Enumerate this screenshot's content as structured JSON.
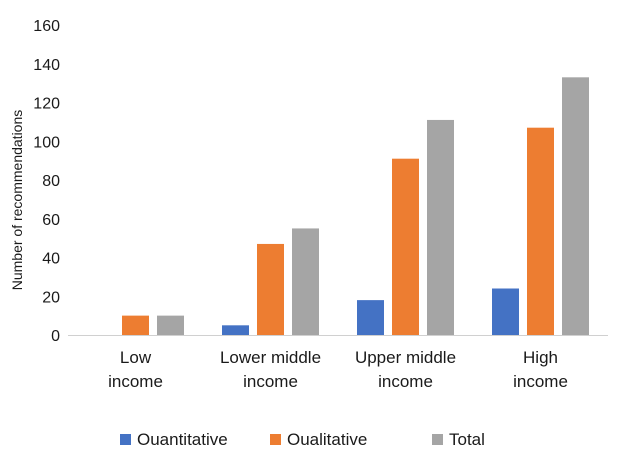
{
  "chart_data": {
    "type": "bar",
    "title": "",
    "xlabel": "",
    "ylabel": "Number of recommendations",
    "ylim": [
      0,
      160
    ],
    "yticks": [
      0,
      20,
      40,
      60,
      80,
      100,
      120,
      140,
      160
    ],
    "grid": false,
    "legend_position": "bottom",
    "categories": [
      [
        "Low",
        "income"
      ],
      [
        "Lower middle",
        "income"
      ],
      [
        "Upper middle",
        "income"
      ],
      [
        "High",
        "income"
      ]
    ],
    "series": [
      {
        "name": "Ouantitative",
        "color": "#4472C4",
        "values": [
          0,
          5,
          18,
          24
        ]
      },
      {
        "name": "Oualitative",
        "color": "#ED7D31",
        "values": [
          10,
          47,
          91,
          107
        ]
      },
      {
        "name": "Total",
        "color": "#A5A5A5",
        "values": [
          10,
          55,
          111,
          133
        ]
      }
    ]
  }
}
